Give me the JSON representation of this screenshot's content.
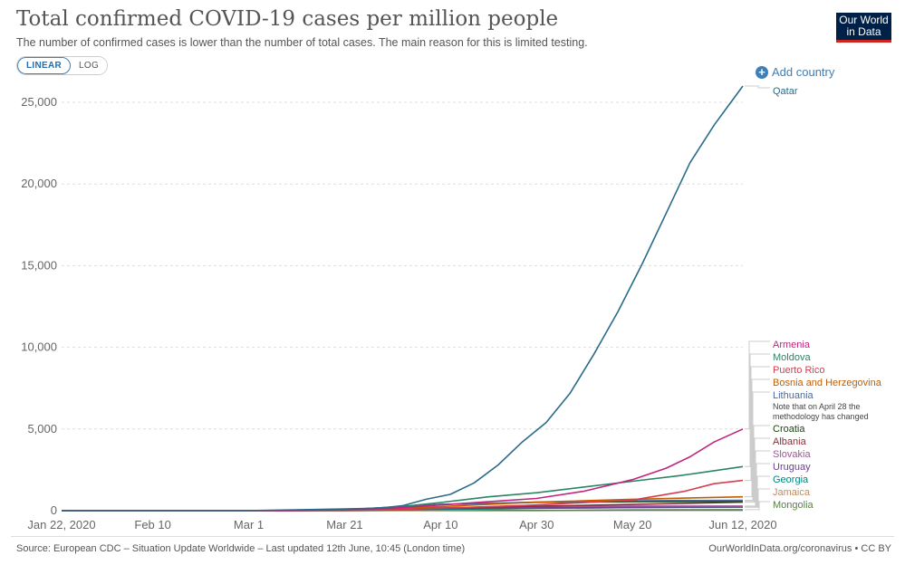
{
  "header": {
    "title": "Total confirmed COVID-19 cases per million people",
    "subtitle": "The number of confirmed cases is lower than the number of total cases. The main reason for this is limited testing.",
    "logo_line1": "Our World",
    "logo_line2": "in Data"
  },
  "controls": {
    "linear_label": "LINEAR",
    "log_label": "LOG",
    "add_country_label": "Add country"
  },
  "footer": {
    "source": "Source: European CDC – Situation Update Worldwide – Last updated 12th June, 10:45 (London time)",
    "credit": "OurWorldInData.org/coronavirus • CC BY"
  },
  "chart_data": {
    "type": "line",
    "title": "Total confirmed COVID-19 cases per million people",
    "x_ticks": [
      "Jan 22, 2020",
      "Feb 10",
      "Mar 1",
      "Mar 21",
      "Apr 10",
      "Apr 30",
      "May 20",
      "Jun 12, 2020"
    ],
    "x_tick_days": [
      0,
      19,
      39,
      59,
      79,
      99,
      119,
      142
    ],
    "y_ticks": [
      "0",
      "5,000",
      "10,000",
      "15,000",
      "20,000",
      "25,000"
    ],
    "ylim": [
      0,
      25000
    ],
    "grid": true,
    "scale": "linear",
    "note": "Note that on April 28 the methodology has changed",
    "series": [
      {
        "name": "Qatar",
        "color": "#2a6b8a",
        "x": [
          0,
          38,
          58,
          66,
          71,
          76,
          81,
          86,
          91,
          96,
          101,
          106,
          111,
          116,
          121,
          126,
          131,
          136,
          139,
          142
        ],
        "y": [
          0,
          0,
          100,
          150,
          300,
          700,
          1000,
          1700,
          2800,
          4200,
          5400,
          7200,
          9600,
          12200,
          15100,
          18200,
          21300,
          23600,
          24800,
          26000
        ]
      },
      {
        "name": "Armenia",
        "color": "#c0257f",
        "x": [
          0,
          44,
          59,
          69,
          79,
          89,
          99,
          109,
          119,
          126,
          131,
          136,
          142
        ],
        "y": [
          0,
          0,
          60,
          150,
          350,
          550,
          750,
          1200,
          1900,
          2600,
          3300,
          4200,
          5000
        ]
      },
      {
        "name": "Moldova",
        "color": "#2b8465",
        "x": [
          0,
          45,
          59,
          69,
          79,
          89,
          99,
          109,
          119,
          129,
          142
        ],
        "y": [
          0,
          0,
          50,
          200,
          500,
          850,
          1100,
          1450,
          1800,
          2150,
          2700
        ]
      },
      {
        "name": "Puerto Rico",
        "color": "#d73c50",
        "x": [
          0,
          50,
          64,
          79,
          99,
          119,
          130,
          136,
          142
        ],
        "y": [
          0,
          0,
          30,
          150,
          350,
          650,
          1200,
          1650,
          1850
        ]
      },
      {
        "name": "Bosnia and Herzegovina",
        "color": "#c15f00",
        "x": [
          0,
          45,
          59,
          79,
          99,
          119,
          142
        ],
        "y": [
          0,
          0,
          30,
          250,
          520,
          700,
          850
        ]
      },
      {
        "name": "Lithuania",
        "color": "#4c6a9c",
        "x": [
          0,
          45,
          59,
          79,
          99,
          119,
          142
        ],
        "y": [
          0,
          0,
          60,
          380,
          520,
          610,
          640
        ]
      },
      {
        "name": "Croatia",
        "color": "#18470f",
        "x": [
          0,
          45,
          59,
          79,
          99,
          119,
          142
        ],
        "y": [
          0,
          0,
          50,
          380,
          510,
          550,
          560
        ]
      },
      {
        "name": "Albania",
        "color": "#883039",
        "x": [
          0,
          45,
          59,
          79,
          99,
          119,
          142
        ],
        "y": [
          0,
          0,
          20,
          150,
          270,
          380,
          520
        ]
      },
      {
        "name": "Slovakia",
        "color": "#a2559c",
        "x": [
          0,
          45,
          59,
          79,
          99,
          119,
          142
        ],
        "y": [
          0,
          0,
          20,
          180,
          260,
          280,
          285
        ]
      },
      {
        "name": "Uruguay",
        "color": "#6d3e91",
        "x": [
          0,
          45,
          59,
          79,
          99,
          119,
          142
        ],
        "y": [
          0,
          0,
          30,
          140,
          180,
          210,
          240
        ]
      },
      {
        "name": "Georgia",
        "color": "#00847e",
        "x": [
          0,
          45,
          59,
          79,
          99,
          119,
          142
        ],
        "y": [
          0,
          0,
          10,
          80,
          150,
          190,
          230
        ]
      },
      {
        "name": "Jamaica",
        "color": "#bc8e5a",
        "x": [
          0,
          45,
          59,
          79,
          99,
          119,
          142
        ],
        "y": [
          0,
          0,
          5,
          30,
          140,
          190,
          210
        ]
      },
      {
        "name": "Mongolia",
        "color": "#578145",
        "x": [
          0,
          45,
          59,
          79,
          99,
          119,
          142
        ],
        "y": [
          0,
          0,
          2,
          10,
          13,
          45,
          60
        ]
      }
    ]
  }
}
